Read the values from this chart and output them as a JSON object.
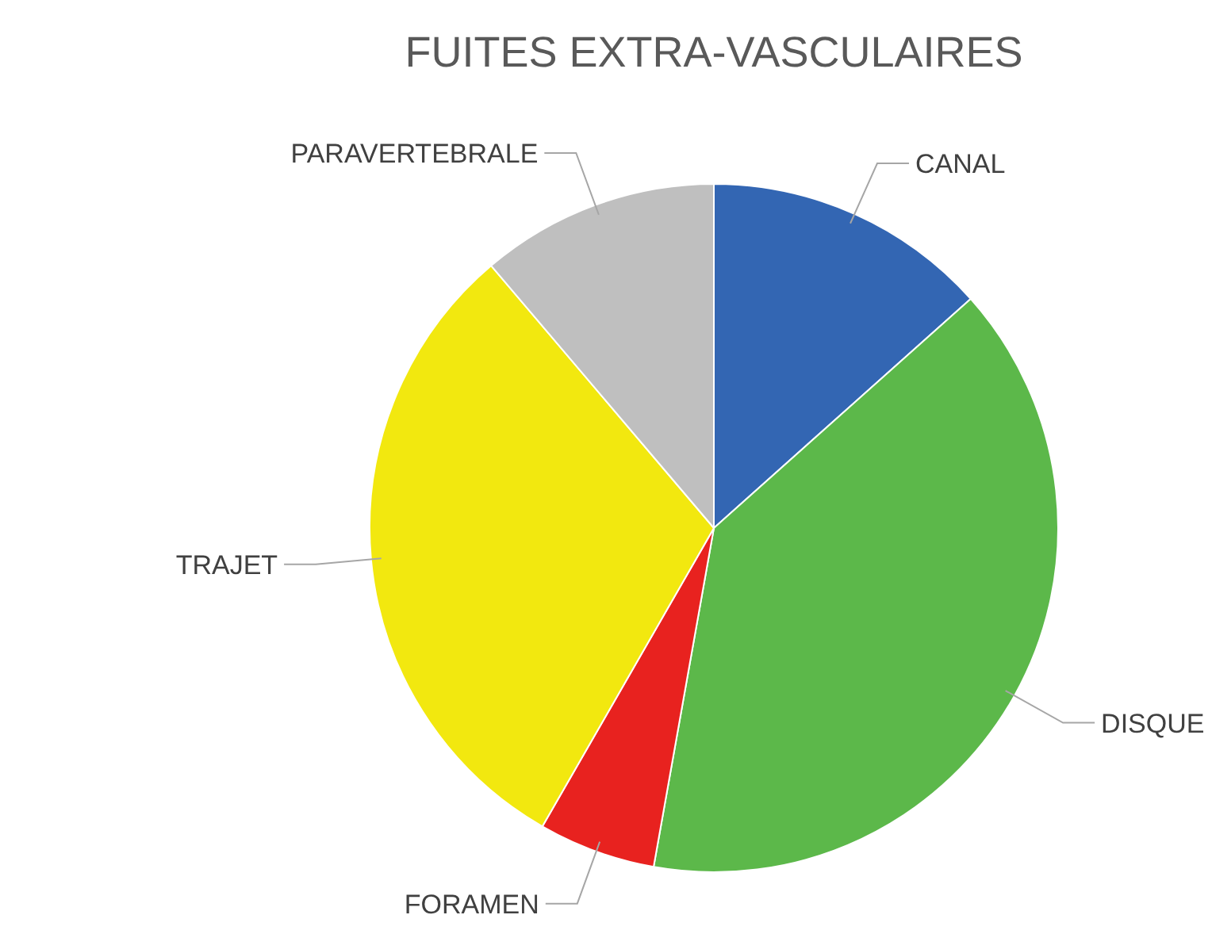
{
  "chart_data": {
    "type": "pie",
    "title": "FUITES EXTRA-VASCULAIRES",
    "categories": [
      "CANAL",
      "DISQUE",
      "FORAMEN",
      "TRAJET",
      "PARAVERTEBRALE"
    ],
    "values": [
      13.4,
      39.4,
      5.5,
      30.5,
      11.2
    ],
    "colors": [
      "#3366b3",
      "#5cb84a",
      "#e8221f",
      "#f2e80f",
      "#bfbfbf"
    ],
    "legend": false
  }
}
